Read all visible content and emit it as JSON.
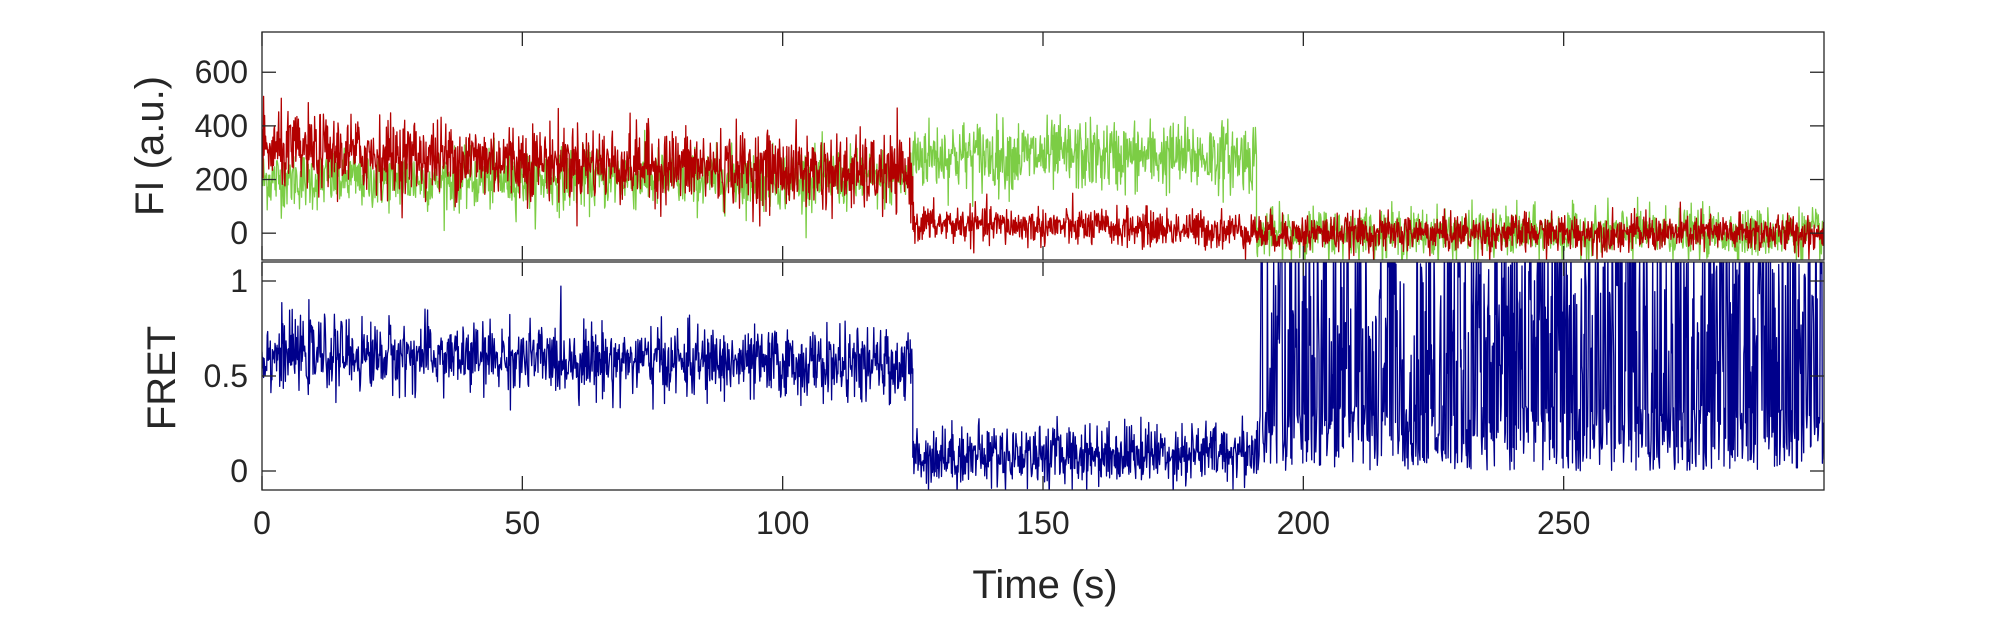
{
  "chart_data": [
    {
      "type": "line",
      "panel": "top",
      "ylabel": "FI (a.u.)",
      "xlim": [
        0,
        300
      ],
      "ylim": [
        -100,
        750
      ],
      "yticks": [
        0,
        200,
        400,
        600
      ],
      "ytick_labels": [
        "0",
        "200",
        "400",
        "600"
      ],
      "grid": false,
      "series_colors": [
        "#7ccd45",
        "#b30000"
      ],
      "series": [
        {
          "segments": [
            {
              "x": [
                0,
                125
              ],
              "y": [
                200,
                205
              ]
            },
            {
              "x": [
                125,
                191
              ],
              "y": [
                290,
                285
              ]
            },
            {
              "x": [
                191,
                300
              ],
              "y": [
                0,
                0
              ]
            }
          ],
          "noise_sd": [
            55,
            65,
            45
          ],
          "drawn_as": "noisy trace"
        },
        {
          "segments": [
            {
              "x": [
                0,
                125
              ],
              "y": [
                310,
                215
              ]
            },
            {
              "x": [
                125,
                191
              ],
              "y": [
                35,
                10
              ]
            },
            {
              "x": [
                191,
                300
              ],
              "y": [
                0,
                0
              ]
            }
          ],
          "noise_sd": [
            70,
            35,
            35
          ],
          "drawn_as": "noisy trace"
        }
      ]
    },
    {
      "type": "line",
      "panel": "bottom",
      "ylabel": "FRET",
      "xlabel": "Time (s)",
      "xlim": [
        0,
        300
      ],
      "ylim": [
        -0.1,
        1.1
      ],
      "yticks": [
        0,
        0.5,
        1
      ],
      "ytick_labels": [
        "0",
        "0.5",
        "1"
      ],
      "xticks": [
        0,
        50,
        100,
        150,
        200,
        250
      ],
      "xtick_labels": [
        "0",
        "50",
        "100",
        "150",
        "200",
        "250"
      ],
      "grid": false,
      "series_colors": [
        "#00008b"
      ],
      "series": [
        {
          "segments": [
            {
              "x": [
                0,
                125
              ],
              "y": [
                0.62,
                0.55
              ]
            },
            {
              "x": [
                125,
                191
              ],
              "y": [
                0.08,
                0.1
              ]
            },
            {
              "x": [
                191,
                300
              ],
              "y": [
                0.5,
                0.5
              ]
            }
          ],
          "noise_sd": [
            0.09,
            0.08,
            0.55
          ],
          "drawn_as": "noisy trace"
        }
      ]
    }
  ]
}
